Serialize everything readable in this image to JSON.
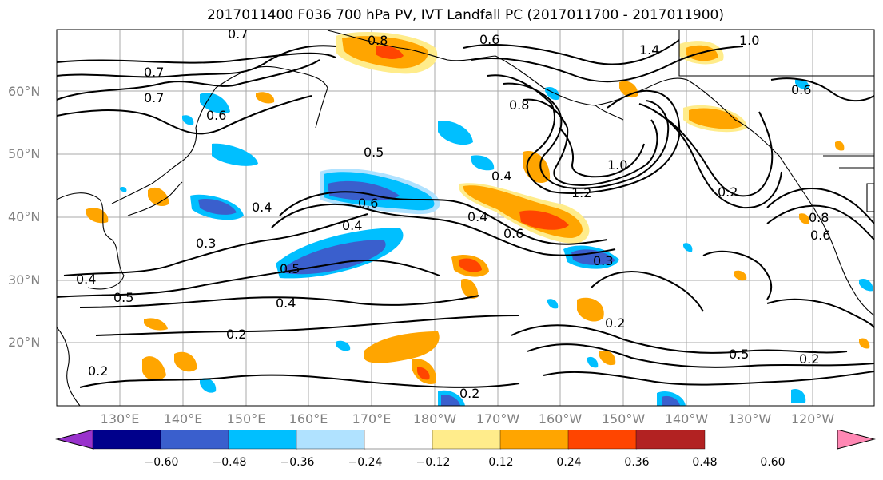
{
  "title": "2017011400 F036 700 hPa PV, IVT Landfall PC (2017011700 - 2017011900)",
  "lat_labels": [
    "60°N",
    "50°N",
    "40°N",
    "30°N",
    "20°N"
  ],
  "lon_labels": [
    "130°E",
    "140°E",
    "150°E",
    "160°E",
    "170°E",
    "180°W",
    "170°W",
    "160°W",
    "150°W",
    "140°W",
    "130°W",
    "120°W"
  ],
  "contour_labels": [
    "0.7",
    "0.8",
    "0.6",
    "0.7",
    "0.7",
    "0.6",
    "0.8",
    "1.4",
    "1.0",
    "0.6",
    "0.5",
    "0.4",
    "1.0",
    "1.2",
    "0.2",
    "0.4",
    "0.6",
    "0.4",
    "0.6",
    "0.3",
    "0.8",
    "0.6",
    "0.3",
    "0.5",
    "0.4",
    "0.4",
    "0.5",
    "0.4",
    "0.2",
    "0.2",
    "0.5",
    "0.2",
    "0.2",
    "0.2"
  ],
  "colorbar": {
    "ticks": [
      "−0.60",
      "−0.48",
      "−0.36",
      "−0.24",
      "−0.12",
      "0.12",
      "0.24",
      "0.36",
      "0.48",
      "0.60"
    ],
    "colors": [
      "#9932CC",
      "#00008B",
      "#3A5FCD",
      "#00BFFF",
      "#B0E2FF",
      "#FFFFFF",
      "#FFEC8B",
      "#FFA500",
      "#FF4500",
      "#B22222",
      "#FF88B4"
    ]
  }
}
